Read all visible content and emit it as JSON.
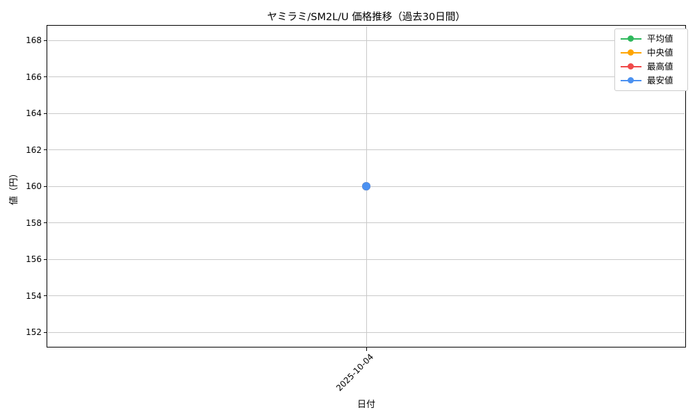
{
  "chart_data": {
    "type": "line",
    "title": "ヤミラミ/SM2L/U 価格推移（過去30日間）",
    "xlabel": "日付",
    "ylabel": "値（円）",
    "x": [
      "2025-10-04"
    ],
    "series": [
      {
        "name": "平均値",
        "color": "#2eb85c",
        "values": [
          160
        ]
      },
      {
        "name": "中央値",
        "color": "#ffa502",
        "values": [
          160
        ]
      },
      {
        "name": "最高値",
        "color": "#f04a4a",
        "values": [
          160
        ]
      },
      {
        "name": "最安値",
        "color": "#4b91f1",
        "values": [
          160
        ]
      }
    ],
    "yticks": [
      152,
      154,
      156,
      158,
      160,
      162,
      164,
      166,
      168
    ],
    "ylim": [
      151.2,
      168.8
    ],
    "xticks": [
      "2025-10-04"
    ],
    "grid": true,
    "grid_color": "#c9c9c9",
    "legend_position": "upper right",
    "marker": "circle",
    "background": "#ffffff"
  }
}
